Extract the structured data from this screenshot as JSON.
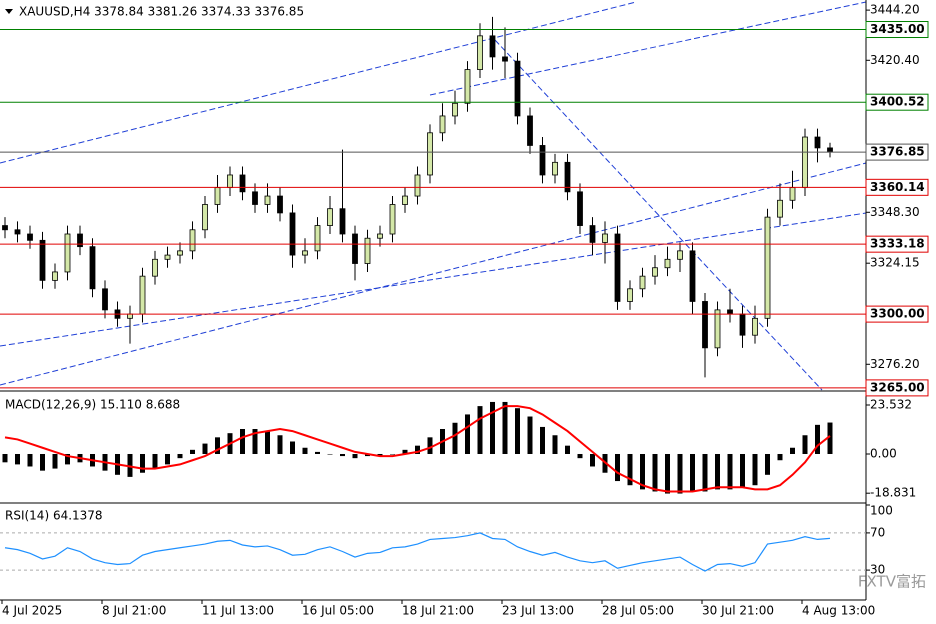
{
  "chart_data": [
    {
      "type": "candlestick",
      "title": "XAUUSD,H4  3378.84 3381.26 3374.33 3376.85",
      "categories": [
        "4 Jul 2025",
        null,
        null,
        null,
        null,
        null,
        null,
        null,
        "8 Jul 21:00",
        null,
        null,
        null,
        null,
        null,
        null,
        null,
        "11 Jul 13:00",
        null,
        null,
        null,
        null,
        null,
        null,
        null,
        "16 Jul 05:00",
        null,
        null,
        null,
        null,
        null,
        null,
        null,
        "18 Jul 21:00",
        null,
        null,
        null,
        null,
        null,
        null,
        null,
        "23 Jul 13:00",
        null,
        null,
        null,
        null,
        null,
        null,
        null,
        "28 Jul 05:00",
        null,
        null,
        null,
        null,
        null,
        null,
        null,
        "30 Jul 21:00",
        null,
        null,
        null,
        null,
        null,
        null,
        null,
        "4 Aug 13:00",
        null,
        null
      ],
      "open": [
        3342,
        3340,
        3338,
        3335,
        3316,
        3320,
        3338,
        3332,
        3312,
        3302,
        3298,
        3300,
        3318,
        3326,
        3328,
        3330,
        3340,
        3352,
        3360,
        3366,
        3358,
        3352,
        3356,
        3348,
        3328,
        3330,
        3342,
        3350,
        3338,
        3324,
        3336,
        3338,
        3352,
        3356,
        3366,
        3386,
        3394,
        3400,
        3416,
        3432,
        3422,
        3420,
        3394,
        3380,
        3366,
        3372,
        3358,
        3342,
        3334,
        3338,
        3306,
        3312,
        3318,
        3322,
        3326,
        3330,
        3306,
        3284,
        3302,
        3300,
        3290,
        3298,
        3346,
        3354,
        3360,
        3384,
        3378.84
      ],
      "high": [
        3346,
        3344,
        3342,
        3339,
        3324,
        3342,
        3342,
        3336,
        3316,
        3306,
        3304,
        3322,
        3330,
        3332,
        3334,
        3344,
        3356,
        3366,
        3370,
        3370,
        3362,
        3362,
        3360,
        3352,
        3336,
        3346,
        3356,
        3378,
        3342,
        3340,
        3342,
        3356,
        3360,
        3370,
        3390,
        3400,
        3406,
        3420,
        3438,
        3441,
        3436,
        3424,
        3398,
        3384,
        3376,
        3376,
        3362,
        3346,
        3344,
        3342,
        3316,
        3322,
        3328,
        3332,
        3334,
        3334,
        3310,
        3306,
        3312,
        3304,
        3304,
        3350,
        3362,
        3368,
        3388,
        3388,
        3381.26
      ],
      "low": [
        3336,
        3334,
        3331,
        3312,
        3312,
        3316,
        3328,
        3308,
        3298,
        3294,
        3286,
        3296,
        3314,
        3322,
        3324,
        3326,
        3336,
        3348,
        3356,
        3354,
        3348,
        3348,
        3344,
        3322,
        3324,
        3326,
        3338,
        3334,
        3316,
        3320,
        3332,
        3334,
        3348,
        3352,
        3362,
        3382,
        3390,
        3396,
        3412,
        3416,
        3412,
        3390,
        3376,
        3362,
        3362,
        3354,
        3338,
        3328,
        3324,
        3302,
        3302,
        3308,
        3314,
        3318,
        3320,
        3300,
        3270,
        3280,
        3296,
        3284,
        3286,
        3294,
        3342,
        3350,
        3356,
        3372,
        3374.33
      ],
      "close": [
        3340,
        3338,
        3335,
        3316,
        3320,
        3338,
        3332,
        3312,
        3302,
        3298,
        3300,
        3318,
        3326,
        3328,
        3330,
        3340,
        3352,
        3360,
        3366,
        3358,
        3352,
        3356,
        3348,
        3328,
        3330,
        3342,
        3350,
        3338,
        3324,
        3336,
        3338,
        3352,
        3356,
        3366,
        3386,
        3394,
        3400,
        3416,
        3432,
        3422,
        3420,
        3394,
        3380,
        3366,
        3372,
        3358,
        3342,
        3334,
        3338,
        3306,
        3312,
        3318,
        3322,
        3326,
        3330,
        3306,
        3284,
        3302,
        3300,
        3290,
        3298,
        3346,
        3354,
        3360,
        3384,
        3378.84,
        3376.85
      ],
      "up_color": "#d4e8a8",
      "down_color": "#000000",
      "ylim": [
        3264,
        3449
      ],
      "yticks": [
        {
          "value": 3444.2,
          "label": "3444.20"
        },
        {
          "value": 3420.4,
          "label": "3420.40"
        },
        {
          "value": 3348.3,
          "label": "3348.30"
        },
        {
          "value": 3324.15,
          "label": "3324.15"
        },
        {
          "value": 3276.2,
          "label": "3276.20"
        }
      ],
      "hlines": [
        {
          "value": 3435,
          "label": "3435.00",
          "color": "#008000"
        },
        {
          "value": 3400.52,
          "label": "3400.52",
          "color": "#008000"
        },
        {
          "value": 3376.85,
          "label": "3376.85",
          "color": "#555555"
        },
        {
          "value": 3360.14,
          "label": "3360.14",
          "color": "#e00000"
        },
        {
          "value": 3333.18,
          "label": "3333.18",
          "color": "#e00000"
        },
        {
          "value": 3300,
          "label": "3300.00",
          "color": "#e00000"
        },
        {
          "value": 3265,
          "label": "3265.00",
          "color": "#e00000"
        }
      ]
    },
    {
      "type": "bar",
      "title": "MACD(12,26,9) 15.110 8.688",
      "series": [
        {
          "type": "bar",
          "color": "#000000",
          "values": [
            -4,
            -5,
            -6,
            -8,
            -7,
            -5,
            -4,
            -6,
            -8,
            -10,
            -11,
            -9,
            -7,
            -5,
            -2,
            2,
            5,
            8,
            10,
            12,
            12,
            11,
            9,
            6,
            3,
            1,
            0,
            -1,
            -2,
            -1,
            -1,
            0,
            2,
            4,
            8,
            12,
            15,
            19,
            23,
            25,
            25,
            22,
            18,
            13,
            9,
            4,
            -2,
            -6,
            -9,
            -13,
            -15,
            -17,
            -18,
            -19,
            -19,
            -18,
            -18,
            -17,
            -17,
            -16,
            -15,
            -10,
            -3,
            3,
            9,
            14,
            15.11
          ]
        },
        {
          "type": "line",
          "color": "#ff0000",
          "values": [
            8,
            7,
            5,
            3,
            1,
            -1,
            -2,
            -3,
            -4,
            -5,
            -6,
            -7,
            -7,
            -6,
            -5,
            -3,
            -1,
            2,
            5,
            8,
            10,
            11,
            12,
            11,
            9,
            7,
            5,
            3,
            1,
            0,
            -1,
            -1,
            0,
            1,
            3,
            6,
            9,
            13,
            17,
            20,
            23,
            23,
            22,
            19,
            15,
            11,
            6,
            1,
            -4,
            -9,
            -12,
            -15,
            -17,
            -18,
            -18,
            -18,
            -17,
            -16,
            -16,
            -16,
            -17,
            -17,
            -15,
            -10,
            -4,
            4,
            8.688
          ]
        }
      ],
      "ylim": [
        -22.1,
        29.3
      ],
      "yticks": [
        {
          "value": 23.532,
          "label": "23.532"
        },
        {
          "value": 0,
          "label": "0.00"
        },
        {
          "value": -18.831,
          "label": "-18.831"
        }
      ]
    },
    {
      "type": "line",
      "title": "RSI(14) 64.1378",
      "color": "#1e90ff",
      "values": [
        54,
        52,
        48,
        42,
        45,
        54,
        50,
        42,
        38,
        36,
        37,
        46,
        50,
        52,
        54,
        56,
        58,
        61,
        62,
        57,
        55,
        56,
        52,
        46,
        47,
        52,
        55,
        50,
        44,
        48,
        49,
        54,
        55,
        58,
        63,
        64,
        65,
        67,
        70,
        64,
        63,
        55,
        50,
        46,
        49,
        44,
        40,
        38,
        40,
        32,
        35,
        38,
        40,
        42,
        44,
        36,
        29,
        36,
        37,
        34,
        38,
        58,
        60,
        62,
        66,
        63,
        64.1378
      ],
      "ylim": [
        0,
        100
      ],
      "yticks": [
        100,
        70,
        30
      ],
      "levels": [
        70,
        30
      ]
    }
  ],
  "watermark": "FXTV富拓"
}
